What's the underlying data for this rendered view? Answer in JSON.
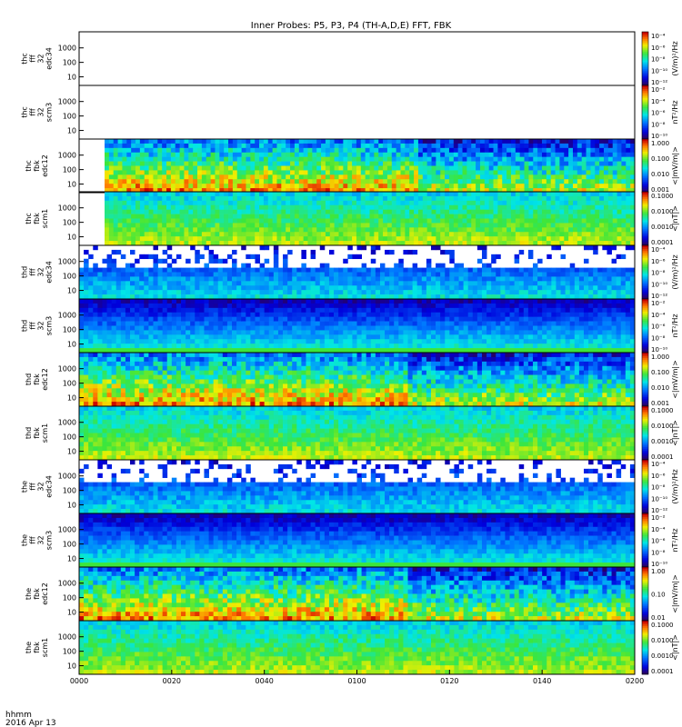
{
  "chart_data": {
    "type": "heatmap",
    "title": "Inner Probes: P5, P3, P4 (TH-A,D,E) FFT, FBK",
    "x_tick_labels": [
      "0000",
      "0020",
      "0040",
      "0100",
      "0120",
      "0140",
      "0200"
    ],
    "x_axis_label": "hhmm",
    "date_label": "2016 Apr 13",
    "y_tick_labels": [
      "10",
      "100",
      "1000"
    ],
    "panels": [
      {
        "label": [
          "thc",
          "fff",
          "32",
          "edc34"
        ],
        "colorbar_ticks": [
          "10⁻⁴",
          "10⁻⁶",
          "10⁻⁸",
          "10⁻¹⁰",
          "10⁻¹²"
        ],
        "unit": "(V/m)²/Hz",
        "empty": true
      },
      {
        "label": [
          "thc",
          "fff",
          "32",
          "scm3"
        ],
        "colorbar_ticks": [
          "10⁻²",
          "10⁻⁴",
          "10⁻⁶",
          "10⁻⁸",
          "10⁻¹⁰"
        ],
        "unit": "nT²/Hz",
        "empty": true
      },
      {
        "label": [
          "thc",
          "fbk",
          "edc12"
        ],
        "colorbar_ticks": [
          "1.000",
          "0.100",
          "0.010",
          "0.001"
        ],
        "unit": "<|mV/m|>",
        "empty": false
      },
      {
        "label": [
          "thc",
          "fbk",
          "scm1"
        ],
        "colorbar_ticks": [
          "0.1000",
          "0.0100",
          "0.0010",
          "0.0001"
        ],
        "unit": "<|nT|>",
        "empty": false
      },
      {
        "label": [
          "thd",
          "fff",
          "32",
          "edc34"
        ],
        "colorbar_ticks": [
          "10⁻⁴",
          "10⁻⁶",
          "10⁻⁸",
          "10⁻¹⁰",
          "10⁻¹²"
        ],
        "unit": "(V/m)²/Hz",
        "empty": false
      },
      {
        "label": [
          "thd",
          "fff",
          "32",
          "scm3"
        ],
        "colorbar_ticks": [
          "10⁻²",
          "10⁻⁴",
          "10⁻⁶",
          "10⁻⁸",
          "10⁻¹⁰"
        ],
        "unit": "nT²/Hz",
        "empty": false
      },
      {
        "label": [
          "thd",
          "fbk",
          "edc12"
        ],
        "colorbar_ticks": [
          "1.000",
          "0.100",
          "0.010",
          "0.001"
        ],
        "unit": "<|mV/m|>",
        "empty": false
      },
      {
        "label": [
          "thd",
          "fbk",
          "scm1"
        ],
        "colorbar_ticks": [
          "0.1000",
          "0.0100",
          "0.0010",
          "0.0001"
        ],
        "unit": "<|nT|>",
        "empty": false
      },
      {
        "label": [
          "the",
          "fff",
          "32",
          "edc34"
        ],
        "colorbar_ticks": [
          "10⁻⁴",
          "10⁻⁶",
          "10⁻⁸",
          "10⁻¹⁰",
          "10⁻¹²"
        ],
        "unit": "(V/m)²/Hz",
        "empty": false
      },
      {
        "label": [
          "the",
          "fff",
          "32",
          "scm3"
        ],
        "colorbar_ticks": [
          "10⁻²",
          "10⁻⁴",
          "10⁻⁶",
          "10⁻⁸",
          "10⁻¹⁰"
        ],
        "unit": "nT²/Hz",
        "empty": false
      },
      {
        "label": [
          "the",
          "fbk",
          "edc12"
        ],
        "colorbar_ticks": [
          "1.00",
          "0.10",
          "0.01"
        ],
        "unit": "<|mV/m|>",
        "empty": false
      },
      {
        "label": [
          "the",
          "fbk",
          "scm1"
        ],
        "colorbar_ticks": [
          "0.1000",
          "0.0100",
          "0.0010",
          "0.0001"
        ],
        "unit": "<|nT|>",
        "empty": false
      }
    ]
  }
}
